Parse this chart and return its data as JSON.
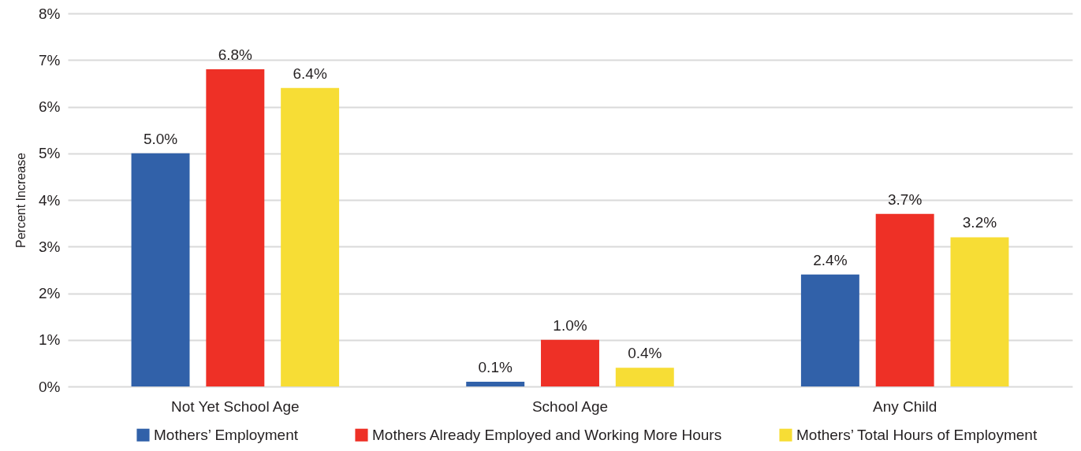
{
  "chart_data": {
    "type": "bar",
    "ylabel": "Percent Increase",
    "categories": [
      "Not Yet School Age",
      "School Age",
      "Any Child"
    ],
    "series": [
      {
        "name": "Mothers’ Employment",
        "color": "#3161a9",
        "values": [
          5.0,
          0.1,
          2.4
        ],
        "value_labels": [
          "5.0%",
          "0.1%",
          "2.4%"
        ]
      },
      {
        "name": "Mothers Already Employed and Working More Hours",
        "color": "#ee3026",
        "values": [
          6.8,
          1.0,
          3.7
        ],
        "value_labels": [
          "6.8%",
          "1.0%",
          "3.7%"
        ]
      },
      {
        "name": "Mothers’ Total Hours of Employment",
        "color": "#f7dd35",
        "values": [
          6.4,
          0.4,
          3.2
        ],
        "value_labels": [
          "6.4%",
          "0.4%",
          "3.2%"
        ]
      }
    ],
    "ylim": [
      0,
      8
    ],
    "yticks": [
      {
        "value": 0,
        "label": "0%"
      },
      {
        "value": 1,
        "label": "1%"
      },
      {
        "value": 2,
        "label": "2%"
      },
      {
        "value": 3,
        "label": "3%"
      },
      {
        "value": 4,
        "label": "4%"
      },
      {
        "value": 5,
        "label": "5%"
      },
      {
        "value": 6,
        "label": "6%"
      },
      {
        "value": 7,
        "label": "7%"
      },
      {
        "value": 8,
        "label": "8%"
      }
    ],
    "grid": "y",
    "legend": "bottom"
  }
}
